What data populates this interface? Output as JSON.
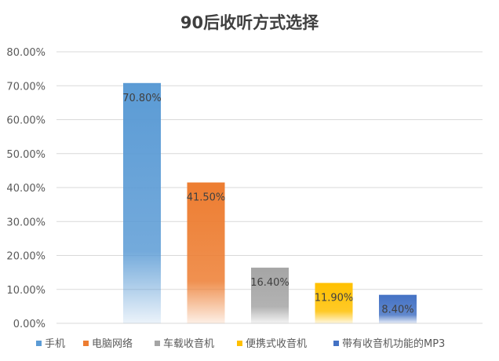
{
  "chart_data": {
    "type": "bar",
    "title": "90后收听方式选择",
    "categories": [
      "手机",
      "电脑网络",
      "车载收音机",
      "便携式收音机",
      "带有收音机功能的MP3"
    ],
    "values": [
      70.8,
      41.5,
      16.4,
      11.9,
      8.4
    ],
    "data_labels": [
      "70.80%",
      "41.50%",
      "16.40%",
      "11.90%",
      "8.40%"
    ],
    "colors": [
      "#5b9bd5",
      "#ed7d31",
      "#a5a5a5",
      "#ffc000",
      "#4472c4"
    ],
    "ylim": [
      0,
      80
    ],
    "yticks": [
      0,
      10,
      20,
      30,
      40,
      50,
      60,
      70,
      80
    ],
    "ytick_labels": [
      "0.00%",
      "10.00%",
      "20.00%",
      "30.00%",
      "40.00%",
      "50.00%",
      "60.00%",
      "70.00%",
      "80.00%"
    ],
    "grid": true,
    "legend_position": "bottom",
    "xlabel": "",
    "ylabel": ""
  }
}
